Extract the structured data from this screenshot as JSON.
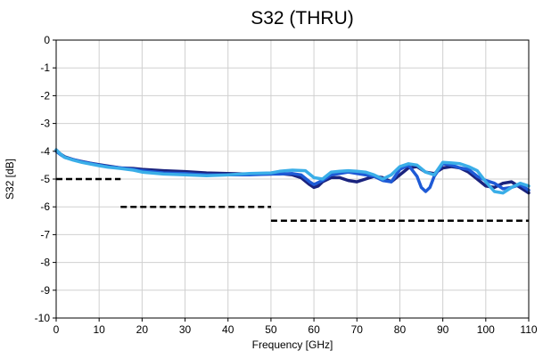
{
  "chart_data": {
    "type": "line",
    "title": "S32 (THRU)",
    "xlabel": "Frequency [GHz]",
    "ylabel": "S32 [dB]",
    "xlim": [
      0,
      110
    ],
    "ylim": [
      -10,
      0
    ],
    "xticks": [
      0,
      10,
      20,
      30,
      40,
      50,
      60,
      70,
      80,
      90,
      100,
      110
    ],
    "yticks": [
      0,
      -1,
      -2,
      -3,
      -4,
      -5,
      -6,
      -7,
      -8,
      -9,
      -10
    ],
    "grid": true,
    "colors": {
      "series": [
        "#1a237e",
        "#1e5ad6",
        "#3aaee8"
      ],
      "limit": "#000000",
      "grid": "#d0d0d0"
    },
    "series": [
      {
        "x": [
          0,
          1,
          2,
          4,
          6,
          8,
          10,
          12,
          15,
          18,
          20,
          25,
          30,
          35,
          40,
          45,
          50,
          52,
          55,
          57,
          59,
          60,
          61,
          62,
          64,
          66,
          68,
          70,
          72,
          74,
          76,
          78,
          80,
          82,
          84,
          86,
          88,
          90,
          92,
          94,
          96,
          98,
          100,
          102,
          104,
          106,
          108,
          110
        ],
        "y": [
          -3.95,
          -4.1,
          -4.2,
          -4.3,
          -4.37,
          -4.43,
          -4.48,
          -4.53,
          -4.6,
          -4.62,
          -4.65,
          -4.7,
          -4.73,
          -4.78,
          -4.8,
          -4.82,
          -4.82,
          -4.8,
          -4.85,
          -4.95,
          -5.2,
          -5.3,
          -5.25,
          -5.1,
          -4.95,
          -4.95,
          -5.05,
          -5.1,
          -5.0,
          -4.9,
          -4.95,
          -5.1,
          -4.85,
          -4.6,
          -4.55,
          -4.75,
          -4.8,
          -4.6,
          -4.55,
          -4.6,
          -4.75,
          -5.0,
          -5.25,
          -5.3,
          -5.15,
          -5.1,
          -5.3,
          -5.5
        ]
      },
      {
        "x": [
          0,
          1,
          2,
          4,
          6,
          8,
          10,
          12,
          15,
          18,
          20,
          25,
          30,
          35,
          40,
          45,
          50,
          52,
          55,
          57,
          59,
          60,
          62,
          64,
          66,
          68,
          70,
          72,
          74,
          76,
          78,
          80,
          82,
          84,
          85,
          86,
          87,
          88,
          90,
          92,
          94,
          96,
          98,
          100,
          102,
          104,
          106,
          108,
          110
        ],
        "y": [
          -4.0,
          -4.12,
          -4.22,
          -4.3,
          -4.38,
          -4.44,
          -4.5,
          -4.55,
          -4.6,
          -4.65,
          -4.7,
          -4.78,
          -4.8,
          -4.85,
          -4.85,
          -4.85,
          -4.82,
          -4.82,
          -4.8,
          -4.85,
          -5.1,
          -5.2,
          -5.05,
          -4.85,
          -4.8,
          -4.75,
          -4.8,
          -4.85,
          -4.9,
          -5.05,
          -5.1,
          -4.65,
          -4.5,
          -4.9,
          -5.3,
          -5.45,
          -5.3,
          -4.9,
          -4.45,
          -4.5,
          -4.6,
          -4.65,
          -4.9,
          -5.05,
          -5.15,
          -5.35,
          -5.3,
          -5.2,
          -5.4
        ]
      },
      {
        "x": [
          0,
          1,
          2,
          4,
          6,
          8,
          10,
          12,
          15,
          18,
          20,
          25,
          30,
          35,
          40,
          45,
          50,
          52,
          55,
          58,
          60,
          62,
          64,
          66,
          68,
          70,
          72,
          74,
          76,
          78,
          80,
          82,
          84,
          86,
          88,
          90,
          92,
          94,
          96,
          98,
          100,
          102,
          104,
          106,
          108,
          110
        ],
        "y": [
          -3.95,
          -4.1,
          -4.22,
          -4.32,
          -4.4,
          -4.46,
          -4.52,
          -4.57,
          -4.62,
          -4.68,
          -4.75,
          -4.82,
          -4.85,
          -4.88,
          -4.85,
          -4.8,
          -4.78,
          -4.72,
          -4.68,
          -4.7,
          -4.95,
          -5.0,
          -4.75,
          -4.72,
          -4.7,
          -4.72,
          -4.75,
          -4.85,
          -5.0,
          -4.85,
          -4.55,
          -4.45,
          -4.5,
          -4.75,
          -4.85,
          -4.4,
          -4.42,
          -4.45,
          -4.55,
          -4.7,
          -5.1,
          -5.45,
          -5.5,
          -5.3,
          -5.15,
          -5.25
        ]
      }
    ],
    "limit_lines": [
      {
        "x": [
          0,
          15
        ],
        "y": -5
      },
      {
        "x": [
          15,
          50
        ],
        "y": -6
      },
      {
        "x": [
          50,
          110
        ],
        "y": -6.5
      }
    ]
  }
}
